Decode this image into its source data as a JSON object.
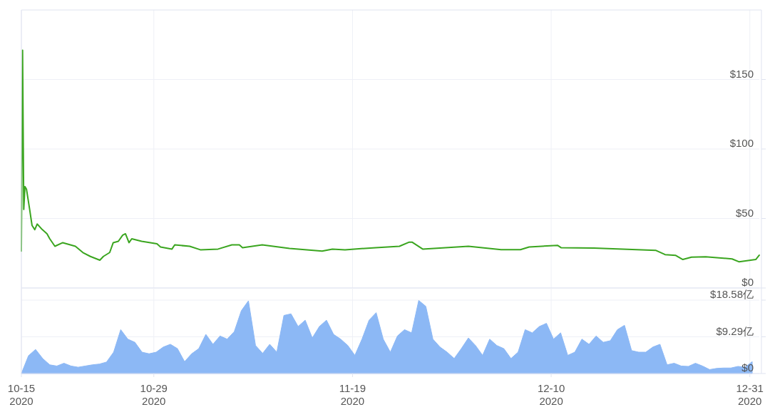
{
  "chart_data": [
    {
      "type": "line",
      "xlim": [
        "2020-10-15",
        "2021-01-01"
      ],
      "xticks": [
        {
          "value": "2020-10-15",
          "label": null
        },
        {
          "value": "2020-10-29",
          "label": null
        },
        {
          "value": "2020-11-19",
          "label": null
        },
        {
          "value": "2020-12-10",
          "label": null
        },
        {
          "value": "2020-12-31",
          "label": null
        }
      ],
      "ylim": [
        0,
        200
      ],
      "yticks": [
        {
          "value": 0,
          "label": "$0"
        },
        {
          "value": 50,
          "label": "$50"
        },
        {
          "value": 100,
          "label": "$100"
        },
        {
          "value": 150,
          "label": "$150"
        }
      ],
      "grid": true,
      "tick_labels": "y",
      "x": [
        "2020-10-15T00:00",
        "2020-10-15T03:00",
        "2020-10-15T06:00",
        "2020-10-15T09:00",
        "2020-10-15T13:00",
        "2020-10-15T21:00",
        "2020-10-16T03:00",
        "2020-10-16T10:00",
        "2020-10-16T16:00",
        "2020-10-17T05:00",
        "2020-10-17T17:00",
        "2020-10-18T00:00",
        "2020-10-18T13:00",
        "2020-10-19T09:00",
        "2020-10-20T17:00",
        "2020-10-21T12:00",
        "2020-10-22T07:00",
        "2020-10-23T07:00",
        "2020-10-23T16:00",
        "2020-10-24T08:00",
        "2020-10-24T17:00",
        "2020-10-25T06:00",
        "2020-10-25T17:00",
        "2020-10-26T00:00",
        "2020-10-26T09:00",
        "2020-10-26T16:00",
        "2020-10-27T17:00",
        "2020-10-29T08:00",
        "2020-10-29T17:00",
        "2020-10-30T22:00",
        "2020-10-31T05:00",
        "2020-11-01T19:00",
        "2020-11-02T22:00",
        "2020-11-04T19:00",
        "2020-11-06T06:00",
        "2020-11-07T01:00",
        "2020-11-07T09:00",
        "2020-11-09T11:00",
        "2020-11-12T08:00",
        "2020-11-15T19:00",
        "2020-11-16T21:00",
        "2020-11-18T05:00",
        "2020-11-21T11:00",
        "2020-11-23T23:00",
        "2020-11-25T00:00",
        "2020-11-25T07:00",
        "2020-11-26T10:00",
        "2020-12-01T06:00",
        "2020-12-04T17:00",
        "2020-12-06T18:00",
        "2020-12-07T16:00",
        "2020-12-10T16:00",
        "2020-12-11T01:00",
        "2020-12-14T12:00",
        "2020-12-21T02:00",
        "2020-12-22T01:00",
        "2020-12-23T04:00",
        "2020-12-23T22:00",
        "2020-12-24T20:00",
        "2020-12-26T08:00",
        "2020-12-29T03:00",
        "2020-12-29T21:00",
        "2020-12-31T15:00",
        "2021-01-01T00:00"
      ],
      "series": [
        {
          "color": "#3aa51f",
          "values": [
            26.5,
            171,
            56.5,
            73,
            71,
            56.5,
            45,
            42,
            46,
            42,
            39,
            35.4,
            30,
            32.6,
            30,
            25.5,
            22.7,
            20,
            22.7,
            25.5,
            32.6,
            33.6,
            38,
            39,
            32.6,
            35.4,
            33.6,
            31.8,
            29.5,
            28,
            31,
            30,
            27.5,
            28,
            31,
            31,
            29,
            31,
            28.5,
            26.5,
            28,
            27.5,
            29,
            30,
            33,
            33,
            28,
            30,
            27.6,
            27.6,
            29.5,
            30.7,
            29,
            28.7,
            27,
            24,
            23.4,
            20.5,
            22.2,
            22.5,
            20.9,
            18.8,
            20.5,
            23.6
          ]
        }
      ]
    },
    {
      "type": "area",
      "xlim": [
        "2020-10-15",
        "2021-01-01"
      ],
      "xticks": [
        {
          "value": "2020-10-15",
          "label": "10-15\n2020"
        },
        {
          "value": "2020-10-29",
          "label": "10-29\n2020"
        },
        {
          "value": "2020-11-19",
          "label": "11-19\n2020"
        },
        {
          "value": "2020-12-10",
          "label": "12-10\n2020"
        },
        {
          "value": "2020-12-31",
          "label": "12-31\n2020"
        }
      ],
      "ylim": [
        0,
        18.58
      ],
      "yticks": [
        {
          "value": 0,
          "label": "$0"
        },
        {
          "value": 9.29,
          "label": "$9.29亿"
        },
        {
          "value": 18.58,
          "label": "$18.58亿"
        }
      ],
      "grid": true,
      "x": [
        "2020-10-15T00:00",
        "2020-10-15T18:00",
        "2020-10-16T12:00",
        "2020-10-17T06:00",
        "2020-10-18T00:00",
        "2020-10-18T18:00",
        "2020-10-19T12:00",
        "2020-10-20T06:00",
        "2020-10-21T00:00",
        "2020-10-21T18:00",
        "2020-10-22T12:00",
        "2020-10-23T06:00",
        "2020-10-24T00:00",
        "2020-10-24T18:00",
        "2020-10-25T12:00",
        "2020-10-26T06:00",
        "2020-10-27T00:00",
        "2020-10-27T18:00",
        "2020-10-28T12:00",
        "2020-10-29T06:00",
        "2020-10-30T00:00",
        "2020-10-30T18:00",
        "2020-10-31T12:00",
        "2020-11-01T06:00",
        "2020-11-02T00:00",
        "2020-11-02T18:00",
        "2020-11-03T12:00",
        "2020-11-04T06:00",
        "2020-11-05T00:00",
        "2020-11-05T18:00",
        "2020-11-06T12:00",
        "2020-11-07T06:00",
        "2020-11-08T00:00",
        "2020-11-08T18:00",
        "2020-11-09T12:00",
        "2020-11-10T06:00",
        "2020-11-11T00:00",
        "2020-11-11T18:00",
        "2020-11-12T12:00",
        "2020-11-13T06:00",
        "2020-11-14T00:00",
        "2020-11-14T18:00",
        "2020-11-15T12:00",
        "2020-11-16T06:00",
        "2020-11-17T00:00",
        "2020-11-17T18:00",
        "2020-11-18T12:00",
        "2020-11-19T06:00",
        "2020-11-20T00:00",
        "2020-11-20T18:00",
        "2020-11-21T12:00",
        "2020-11-22T06:00",
        "2020-11-23T00:00",
        "2020-11-23T18:00",
        "2020-11-24T12:00",
        "2020-11-25T06:00",
        "2020-11-26T00:00",
        "2020-11-26T18:00",
        "2020-11-27T12:00",
        "2020-11-28T06:00",
        "2020-11-29T00:00",
        "2020-11-29T18:00",
        "2020-11-30T12:00",
        "2020-12-01T06:00",
        "2020-12-02T00:00",
        "2020-12-02T18:00",
        "2020-12-03T12:00",
        "2020-12-04T06:00",
        "2020-12-05T00:00",
        "2020-12-05T18:00",
        "2020-12-06T12:00",
        "2020-12-07T06:00",
        "2020-12-08T00:00",
        "2020-12-08T18:00",
        "2020-12-09T12:00",
        "2020-12-10T06:00",
        "2020-12-11T00:00",
        "2020-12-11T18:00",
        "2020-12-12T12:00",
        "2020-12-13T06:00",
        "2020-12-14T00:00",
        "2020-12-14T18:00",
        "2020-12-15T12:00",
        "2020-12-16T06:00",
        "2020-12-17T00:00",
        "2020-12-17T18:00",
        "2020-12-18T12:00",
        "2020-12-19T06:00",
        "2020-12-20T00:00",
        "2020-12-20T18:00",
        "2020-12-21T12:00",
        "2020-12-22T06:00",
        "2020-12-23T00:00",
        "2020-12-23T18:00",
        "2020-12-24T12:00",
        "2020-12-25T06:00",
        "2020-12-26T00:00",
        "2020-12-26T18:00",
        "2020-12-27T12:00",
        "2020-12-28T06:00",
        "2020-12-29T00:00",
        "2020-12-29T18:00",
        "2020-12-30T12:00",
        "2020-12-31T06:00"
      ],
      "series": [
        {
          "color": "#8cb8f5",
          "values": [
            0,
            4.5,
            6.1,
            3.8,
            2.2,
            1.9,
            2.6,
            1.9,
            1.6,
            1.9,
            2.2,
            2.4,
            2.9,
            5.4,
            11.1,
            8.7,
            7.9,
            5.4,
            5.0,
            5.4,
            6.7,
            7.4,
            6.3,
            3.0,
            5.0,
            6.3,
            9.9,
            7.4,
            9.5,
            8.7,
            10.6,
            15.9,
            18.4,
            7.1,
            5.1,
            7.4,
            5.4,
            14.7,
            15.1,
            11.9,
            13.5,
            9.0,
            11.9,
            13.5,
            9.9,
            8.7,
            7.1,
            4.6,
            8.7,
            13.5,
            15.4,
            8.7,
            5.4,
            9.5,
            11.1,
            10.3,
            18.5,
            17.0,
            8.7,
            6.7,
            5.4,
            3.8,
            6.3,
            9.0,
            7.1,
            4.6,
            8.7,
            7.1,
            6.3,
            3.8,
            5.4,
            11.1,
            10.3,
            11.9,
            12.7,
            8.7,
            10.3,
            4.6,
            5.4,
            8.7,
            7.4,
            9.5,
            7.9,
            8.3,
            11.1,
            12.2,
            5.8,
            5.4,
            5.4,
            6.7,
            7.4,
            2.2,
            2.6,
            1.9,
            1.8,
            2.6,
            1.9,
            1.0,
            1.3,
            1.4,
            1.4,
            1.8,
            1.6,
            3.0
          ]
        }
      ]
    }
  ]
}
